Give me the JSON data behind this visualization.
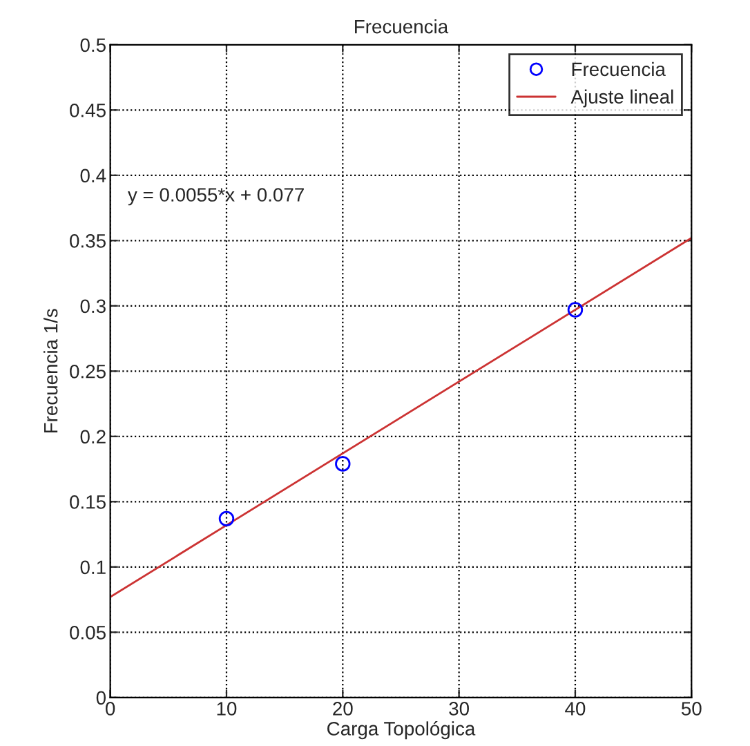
{
  "chart_data": {
    "type": "scatter",
    "title": "Frecuencia",
    "xlabel": "Carga Topológica",
    "ylabel": "Frecuencia 1/s",
    "annotations": [
      "y = 0.0055*x + 0.077"
    ],
    "series": [
      {
        "name": "Frecuencia",
        "color": "#0000ff",
        "x": [
          10,
          20,
          40
        ],
        "values": [
          0.137,
          0.179,
          0.297
        ],
        "marker": "circle"
      },
      {
        "name": "Ajuste lineal",
        "type": "line",
        "color": "#cc3333",
        "x": [
          0,
          50
        ],
        "values": [
          0.077,
          0.352
        ],
        "marker": "none",
        "line_style": "solid"
      }
    ],
    "xlim": [
      0,
      50
    ],
    "xticks": [
      0,
      10,
      20,
      30,
      40,
      50
    ],
    "ylim": [
      0,
      0.5
    ],
    "yticks": [
      0,
      0.05,
      0.1,
      0.15,
      0.2,
      0.25,
      0.3,
      0.35,
      0.4,
      0.45,
      0.5
    ],
    "grid": true,
    "legend": "top right"
  }
}
